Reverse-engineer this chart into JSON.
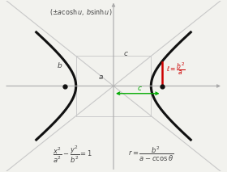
{
  "bg_color": "#f2f2ee",
  "axes_color": "#aaaaaa",
  "hyperbola_color": "#111111",
  "asymptote_color": "#c8c8c8",
  "box_color": "#cccccc",
  "green_color": "#00aa00",
  "red_color": "#cc0000",
  "dot_color": "#111111",
  "text_color": "#444444",
  "a": 0.35,
  "b": 0.28,
  "c": 0.45,
  "t_max": 1.35,
  "xlim": [
    -1.02,
    1.02
  ],
  "ylim": [
    -0.8,
    0.8
  ]
}
